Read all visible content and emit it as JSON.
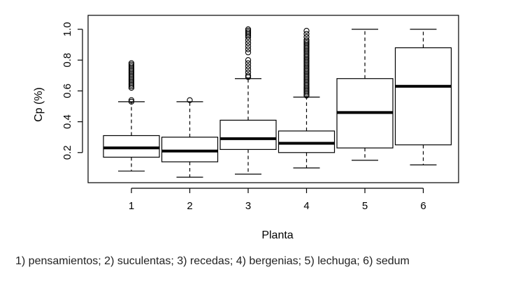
{
  "chart_data": {
    "type": "box",
    "xlabel": "Planta",
    "ylabel": "Cp (%)",
    "categories": [
      "1",
      "2",
      "3",
      "4",
      "5",
      "6"
    ],
    "y_ticks": [
      "0.2",
      "0.4",
      "0.6",
      "0.8",
      "1.0"
    ],
    "ylim": [
      0.0,
      1.0
    ],
    "series": [
      {
        "category": "1",
        "whisker_low": 0.08,
        "q1": 0.17,
        "median": 0.23,
        "q3": 0.31,
        "whisker_high": 0.53,
        "outliers": [
          0.53,
          0.54,
          0.62,
          0.63,
          0.64,
          0.65,
          0.66,
          0.67,
          0.68,
          0.69,
          0.7,
          0.71,
          0.72,
          0.73,
          0.74,
          0.75,
          0.76,
          0.77,
          0.78
        ]
      },
      {
        "category": "2",
        "whisker_low": 0.04,
        "q1": 0.14,
        "median": 0.21,
        "q3": 0.3,
        "whisker_high": 0.53,
        "outliers": [
          0.54
        ]
      },
      {
        "category": "3",
        "whisker_low": 0.06,
        "q1": 0.22,
        "median": 0.29,
        "q3": 0.41,
        "whisker_high": 0.68,
        "outliers": [
          0.69,
          0.7,
          0.72,
          0.74,
          0.76,
          0.78,
          0.8,
          0.85,
          0.87,
          0.89,
          0.91,
          0.93,
          0.95,
          0.96,
          0.97,
          0.98,
          0.99,
          1.0
        ]
      },
      {
        "category": "4",
        "whisker_low": 0.1,
        "q1": 0.2,
        "median": 0.26,
        "q3": 0.34,
        "whisker_high": 0.56,
        "outliers": [
          0.57,
          0.58,
          0.59,
          0.6,
          0.61,
          0.62,
          0.63,
          0.64,
          0.65,
          0.66,
          0.67,
          0.68,
          0.69,
          0.7,
          0.71,
          0.72,
          0.73,
          0.74,
          0.75,
          0.76,
          0.77,
          0.78,
          0.79,
          0.8,
          0.81,
          0.82,
          0.83,
          0.84,
          0.85,
          0.86,
          0.87,
          0.88,
          0.89,
          0.9,
          0.91,
          0.92,
          0.93,
          0.95,
          0.97,
          0.99
        ]
      },
      {
        "category": "5",
        "whisker_low": 0.15,
        "q1": 0.23,
        "median": 0.46,
        "q3": 0.68,
        "whisker_high": 1.0,
        "outliers": []
      },
      {
        "category": "6",
        "whisker_low": 0.12,
        "q1": 0.25,
        "median": 0.63,
        "q3": 0.88,
        "whisker_high": 1.0,
        "outliers": []
      }
    ],
    "grid": false,
    "legend": "none"
  },
  "caption": "1) pensamientos; 2) suculentas; 3) recedas; 4) bergenias; 5) lechuga; 6) sedum"
}
